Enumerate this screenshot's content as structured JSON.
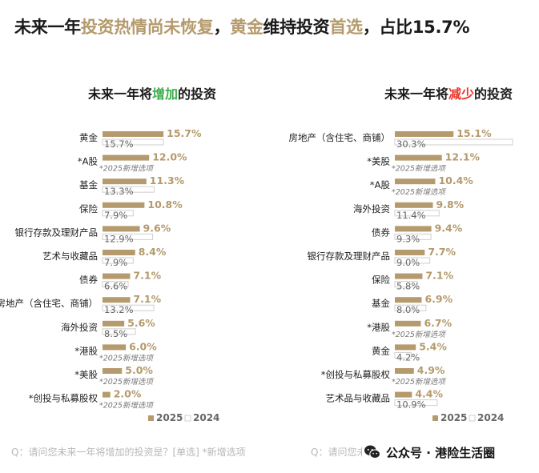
{
  "headline": {
    "part1": "未来一年",
    "part2": "投资热情尚未恢复",
    "part3": "，",
    "part4": "黄金",
    "part5": "维持投资",
    "part6": "首选",
    "part7": "，占比15.7%"
  },
  "colors": {
    "bar_2025": "#b49a6c",
    "bar_2024": "#ffffff",
    "bar_2024_border": "#cfcfcf",
    "increase_accent": "#3cae4a",
    "decrease_accent": "#e8362d",
    "highlight": "#b49a6c"
  },
  "left_panel": {
    "title_prefix": "未来一年将",
    "title_keyword": "增加",
    "title_suffix": "的投资",
    "footnote": "Q：请问您未来一年将增加的投资是？[单选] *新增选项"
  },
  "right_panel": {
    "title_prefix": "未来一年将",
    "title_keyword": "减少",
    "title_suffix": "的投资",
    "footnote": "Q：请问您未"
  },
  "watermark": {
    "text": "公众号 · 港险生活圈",
    "icon": "wechat-icon"
  },
  "chart_data": [
    {
      "type": "bar",
      "orientation": "horizontal",
      "title": "未来一年将增加的投资",
      "categories": [
        "黄金",
        "*A股",
        "基金",
        "保险",
        "银行存款及理财产品",
        "艺术与收藏品",
        "债券",
        "房地产（含住宅、商铺）",
        "海外投资",
        "*港股",
        "*美股",
        "*创投与私募股权"
      ],
      "series": [
        {
          "name": "2025",
          "values": [
            15.7,
            12.0,
            11.3,
            10.8,
            9.6,
            8.4,
            7.1,
            7.1,
            5.6,
            6.0,
            5.0,
            2.0
          ],
          "labels": [
            "15.7%",
            "12.0%",
            "11.3%",
            "10.8%",
            "9.6%",
            "8.4%",
            "7.1%",
            "7.1%",
            "5.6%",
            "6.0%",
            "5.0%",
            "2.0%"
          ]
        },
        {
          "name": "2024",
          "values": [
            15.7,
            null,
            13.3,
            7.9,
            12.9,
            7.9,
            6.6,
            13.2,
            8.5,
            null,
            null,
            null
          ],
          "labels": [
            "15.7%",
            "*2025新增选项",
            "13.3%",
            "7.9%",
            "12.9%",
            "7.9%",
            "6.6%",
            "13.2%",
            "8.5%",
            "*2025新增选项",
            "*2025新增选项",
            "*2025新增选项"
          ]
        }
      ],
      "legend": [
        "2025",
        "2024"
      ],
      "legend_position": "bottom-right",
      "unit": "%"
    },
    {
      "type": "bar",
      "orientation": "horizontal",
      "title": "未来一年将减少的投资",
      "categories": [
        "房地产（含住宅、商铺）",
        "*美股",
        "*A股",
        "海外投资",
        "债券",
        "银行存款及理财产品",
        "保险",
        "基金",
        "*港股",
        "黄金",
        "*创投与私募股权",
        "艺术品与收藏品"
      ],
      "series": [
        {
          "name": "2025",
          "values": [
            15.1,
            12.1,
            10.4,
            9.8,
            9.4,
            7.7,
            7.1,
            6.9,
            6.7,
            5.4,
            4.9,
            4.4
          ],
          "labels": [
            "15.1%",
            "12.1%",
            "10.4%",
            "9.8%",
            "9.4%",
            "7.7%",
            "7.1%",
            "6.9%",
            "6.7%",
            "5.4%",
            "4.9%",
            "4.4%"
          ]
        },
        {
          "name": "2024",
          "values": [
            30.3,
            null,
            null,
            11.4,
            9.3,
            9.0,
            5.8,
            8.0,
            null,
            4.2,
            null,
            10.9
          ],
          "labels": [
            "30.3%",
            "*2025新增选项",
            "*2025新增选项",
            "11.4%",
            "9.3%",
            "9.0%",
            "5.8%",
            "8.0%",
            "*2025新增选项",
            "4.2%",
            "*2025新增选项",
            "10.9%"
          ]
        }
      ],
      "legend": [
        "2025",
        "2024"
      ],
      "legend_position": "bottom-right",
      "unit": "%"
    }
  ]
}
